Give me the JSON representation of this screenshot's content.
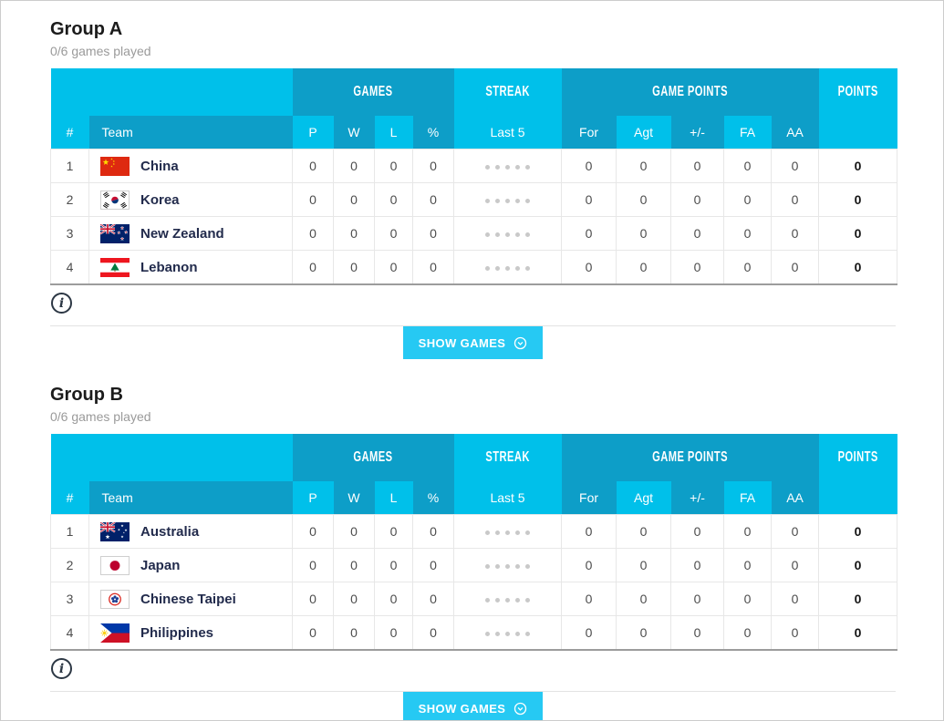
{
  "colors": {
    "header_light": "#00c0ea",
    "header_dark": "#0d9ec8",
    "accent_button": "#26c9f3",
    "streak_dot": "#c9c9c9",
    "table_bottom_border": "#9c9c9c"
  },
  "sections": [
    {
      "title": "Group A",
      "subtitle": "0/6 games played",
      "button_label": "SHOW GAMES",
      "button_icon": "chevron-down-circle-icon",
      "info_icon": "info-icon",
      "table": {
        "group_headers": [
          {
            "label": "",
            "span": 2,
            "tone": "light"
          },
          {
            "label": "GAMES",
            "span": 4,
            "tone": "dark"
          },
          {
            "label": "STREAK",
            "span": 1,
            "tone": "light"
          },
          {
            "label": "GAME POINTS",
            "span": 5,
            "tone": "dark"
          },
          {
            "label": "POINTS",
            "span": 1,
            "tone": "light"
          }
        ],
        "columns": [
          {
            "key": "pos",
            "label": "#",
            "tone": "light"
          },
          {
            "key": "team",
            "label": "Team",
            "tone": "dark"
          },
          {
            "key": "p",
            "label": "P",
            "tone": "light"
          },
          {
            "key": "w",
            "label": "W",
            "tone": "dark"
          },
          {
            "key": "l",
            "label": "L",
            "tone": "light"
          },
          {
            "key": "pct",
            "label": "%",
            "tone": "dark"
          },
          {
            "key": "streak",
            "label": "Last 5",
            "tone": "light"
          },
          {
            "key": "for",
            "label": "For",
            "tone": "dark"
          },
          {
            "key": "agt",
            "label": "Agt",
            "tone": "light"
          },
          {
            "key": "pm",
            "label": "+/-",
            "tone": "dark"
          },
          {
            "key": "fa",
            "label": "FA",
            "tone": "light"
          },
          {
            "key": "aa",
            "label": "AA",
            "tone": "dark"
          },
          {
            "key": "points",
            "label": "",
            "tone": "light"
          }
        ],
        "rows": [
          {
            "pos": "1",
            "team": "China",
            "flag": "china",
            "p": "0",
            "w": "0",
            "l": "0",
            "pct": "0",
            "last5_dots": 5,
            "for": "0",
            "agt": "0",
            "pm": "0",
            "fa": "0",
            "aa": "0",
            "points": "0"
          },
          {
            "pos": "2",
            "team": "Korea",
            "flag": "korea",
            "p": "0",
            "w": "0",
            "l": "0",
            "pct": "0",
            "last5_dots": 5,
            "for": "0",
            "agt": "0",
            "pm": "0",
            "fa": "0",
            "aa": "0",
            "points": "0"
          },
          {
            "pos": "3",
            "team": "New Zealand",
            "flag": "new-zealand",
            "p": "0",
            "w": "0",
            "l": "0",
            "pct": "0",
            "last5_dots": 5,
            "for": "0",
            "agt": "0",
            "pm": "0",
            "fa": "0",
            "aa": "0",
            "points": "0"
          },
          {
            "pos": "4",
            "team": "Lebanon",
            "flag": "lebanon",
            "p": "0",
            "w": "0",
            "l": "0",
            "pct": "0",
            "last5_dots": 5,
            "for": "0",
            "agt": "0",
            "pm": "0",
            "fa": "0",
            "aa": "0",
            "points": "0"
          }
        ]
      }
    },
    {
      "title": "Group B",
      "subtitle": "0/6 games played",
      "button_label": "SHOW GAMES",
      "button_icon": "chevron-down-circle-icon",
      "info_icon": "info-icon",
      "table": {
        "group_headers": [
          {
            "label": "",
            "span": 2,
            "tone": "light"
          },
          {
            "label": "GAMES",
            "span": 4,
            "tone": "dark"
          },
          {
            "label": "STREAK",
            "span": 1,
            "tone": "light"
          },
          {
            "label": "GAME POINTS",
            "span": 5,
            "tone": "dark"
          },
          {
            "label": "POINTS",
            "span": 1,
            "tone": "light"
          }
        ],
        "columns": [
          {
            "key": "pos",
            "label": "#",
            "tone": "light"
          },
          {
            "key": "team",
            "label": "Team",
            "tone": "dark"
          },
          {
            "key": "p",
            "label": "P",
            "tone": "light"
          },
          {
            "key": "w",
            "label": "W",
            "tone": "dark"
          },
          {
            "key": "l",
            "label": "L",
            "tone": "light"
          },
          {
            "key": "pct",
            "label": "%",
            "tone": "dark"
          },
          {
            "key": "streak",
            "label": "Last 5",
            "tone": "light"
          },
          {
            "key": "for",
            "label": "For",
            "tone": "dark"
          },
          {
            "key": "agt",
            "label": "Agt",
            "tone": "light"
          },
          {
            "key": "pm",
            "label": "+/-",
            "tone": "dark"
          },
          {
            "key": "fa",
            "label": "FA",
            "tone": "light"
          },
          {
            "key": "aa",
            "label": "AA",
            "tone": "dark"
          },
          {
            "key": "points",
            "label": "",
            "tone": "light"
          }
        ],
        "rows": [
          {
            "pos": "1",
            "team": "Australia",
            "flag": "australia",
            "p": "0",
            "w": "0",
            "l": "0",
            "pct": "0",
            "last5_dots": 5,
            "for": "0",
            "agt": "0",
            "pm": "0",
            "fa": "0",
            "aa": "0",
            "points": "0"
          },
          {
            "pos": "2",
            "team": "Japan",
            "flag": "japan",
            "p": "0",
            "w": "0",
            "l": "0",
            "pct": "0",
            "last5_dots": 5,
            "for": "0",
            "agt": "0",
            "pm": "0",
            "fa": "0",
            "aa": "0",
            "points": "0"
          },
          {
            "pos": "3",
            "team": "Chinese Taipei",
            "flag": "chinese-taipei",
            "p": "0",
            "w": "0",
            "l": "0",
            "pct": "0",
            "last5_dots": 5,
            "for": "0",
            "agt": "0",
            "pm": "0",
            "fa": "0",
            "aa": "0",
            "points": "0"
          },
          {
            "pos": "4",
            "team": "Philippines",
            "flag": "philippines",
            "p": "0",
            "w": "0",
            "l": "0",
            "pct": "0",
            "last5_dots": 5,
            "for": "0",
            "agt": "0",
            "pm": "0",
            "fa": "0",
            "aa": "0",
            "points": "0"
          }
        ]
      }
    }
  ]
}
